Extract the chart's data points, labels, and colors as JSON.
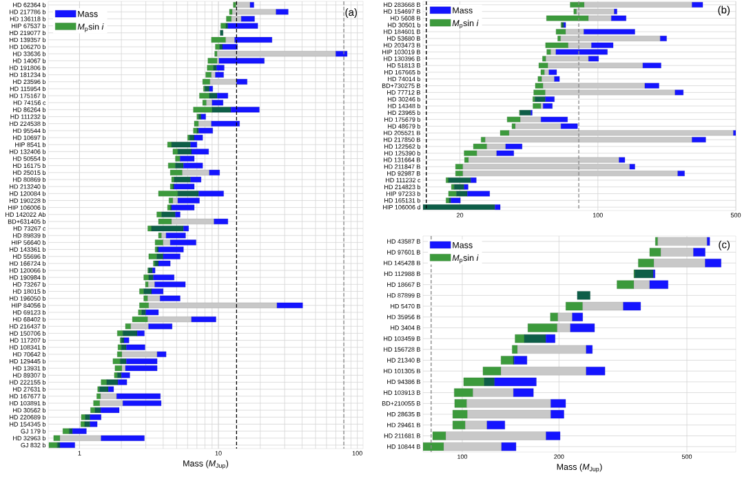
{
  "chart_data": [
    {
      "type": "bar",
      "orientation": "horizontal",
      "log": "x",
      "grid": true,
      "legend": "top left",
      "xlabel": "Mass (*M*$_{Jup}$)",
      "xlim": [
        0.595,
        110
      ],
      "xticks": [
        1,
        10,
        100
      ],
      "categories": [
        "HD 62364 b",
        "HD 217786 b",
        "HD 136118 b",
        "HIP 67537 b",
        "HD 219077 b",
        "HD 139357 b",
        "HD 106270 b",
        "HD 33636 b",
        "HD 14067 b",
        "HD 191806 b",
        "HD 181234 b",
        "HD 23596 b",
        "HD 115954 b",
        "HD 175167 b",
        "HD 74156 c",
        "HD 86264 b",
        "HD 111232 b",
        "HD 224538 b",
        "HD 95544 b",
        "HD 10697 b",
        "HIP 8541 b",
        "HD 132406 b",
        "HD 50554 b",
        "HD 16175 b",
        "HD 25015 b",
        "HD 80869 b",
        "HD 213240 b",
        "HD 120084 b",
        "HD 190228 b",
        "HIP 106006 b",
        "HD 142022 Ab",
        "BD+631405 b",
        "HD 73267 c",
        "HD 89839 b",
        "HIP 56640 b",
        "HD 143361 b",
        "HD 55696 b",
        "HD 166724 b",
        "HD 120066 b",
        "HD 190984 b",
        "HD 73267 b",
        "HD 18015 b",
        "HD 196050 b",
        "HIP 84056 b",
        "HD 69123 b",
        "HD 68402 b",
        "HD 216437 b",
        "HD 150706 b",
        "HD 117207 b",
        "HD 108341 b",
        "HD 70642 b",
        "HD 129445 b",
        "HD 13931 b",
        "HD 89307 b",
        "HD 222155 b",
        "HD 27631 b",
        "HD 167677 b",
        "HD 103891 b",
        "HD 30562 b",
        "HD 220689 b",
        "HD 154345 b",
        "GJ 179 b",
        "HD 32963 b",
        "GJ 832 b"
      ],
      "series": [
        {
          "name": "*M*$_{p}$sin *i*",
          "color": "#3c9a3c",
          "base": [
            12.8,
            12.0,
            11.4,
            10.4,
            null,
            8.9,
            9.5,
            9.4,
            8.4,
            8.3,
            8.1,
            7.7,
            7.8,
            7.3,
            7.7,
            6.6,
            7.0,
            6.7,
            6.6,
            6.0,
            4.3,
            4.7,
            4.9,
            4.35,
            4.5,
            4.6,
            4.5,
            3.7,
            4.4,
            4.3,
            3.6,
            3.7,
            3.1,
            3.7,
            3.5,
            3.5,
            3.15,
            3.4,
            3.1,
            2.9,
            2.98,
            2.7,
            2.9,
            2.7,
            2.65,
            2.4,
            2.14,
            1.87,
            1.96,
            1.89,
            1.87,
            1.74,
            1.8,
            1.78,
            1.43,
            1.35,
            1.33,
            1.26,
            1.2,
            1.03,
            1.02,
            0.758,
            0.651,
            0.602
          ],
          "values": [
            0.6,
            0.6,
            1.0,
            0.9,
            null,
            2.4,
            0.7,
            0.4,
            1.4,
            0.9,
            0.8,
            1.0,
            0.2,
            1.3,
            0.5,
            2.4,
            0.2,
            0.5,
            0.4,
            0.2,
            0.3,
            0.4,
            0.4,
            0.55,
            1.0,
            0.2,
            0.2,
            1.4,
            0.3,
            0.2,
            0.3,
            0.9,
            0.2,
            0.2,
            0.5,
            0.1,
            0.45,
            0.1,
            0.05,
            0.25,
            0.15,
            0.2,
            0.2,
            0.45,
            0.15,
            0.7,
            0.2,
            0.18,
            0.04,
            0.11,
            0.15,
            0.22,
            0.22,
            0.09,
            0.14,
            0.04,
            0.09,
            0.14,
            0.09,
            0.07,
            0.07,
            0.084,
            0.072,
            0.09
          ]
        },
        {
          "color": "#c8c8c8",
          "base": [
            13.4,
            12.6,
            12.4,
            null,
            null,
            11.3,
            null,
            9.8,
            9.8,
            null,
            8.9,
            8.7,
            null,
            null,
            8.2,
            null,
            null,
            7.2,
            null,
            null,
            null,
            null,
            null,
            null,
            5.5,
            null,
            null,
            null,
            4.7,
            null,
            null,
            4.6,
            null,
            3.9,
            4.0,
            null,
            null,
            null,
            null,
            null,
            3.13,
            null,
            3.1,
            3.15,
            null,
            3.1,
            2.34,
            null,
            null,
            null,
            2.02,
            null,
            2.02,
            null,
            null,
            null,
            1.42,
            1.4,
            null,
            null,
            null,
            null,
            0.723,
            null
          ],
          "values": [
            3.5,
            13.4,
            2.2,
            null,
            null,
            1.8,
            null,
            60.2,
            0.3,
            null,
            0.6,
            4.8,
            null,
            null,
            0.8,
            null,
            null,
            1.7,
            null,
            null,
            null,
            null,
            null,
            null,
            3.1,
            null,
            null,
            null,
            0.4,
            null,
            null,
            4.7,
            null,
            0.3,
            0.5,
            null,
            null,
            null,
            null,
            null,
            0.35,
            null,
            0.7,
            23.25,
            null,
            3.3,
            0.8,
            null,
            null,
            null,
            1.6,
            null,
            0.12,
            null,
            null,
            null,
            0.43,
            0.65,
            null,
            null,
            null,
            null,
            0.707,
            null
          ]
        },
        {
          "color": "#0e5e48",
          "base": [
            null,
            null,
            null,
            11.3,
            10.3,
            null,
            10.2,
            null,
            null,
            9.2,
            null,
            null,
            8.0,
            8.6,
            null,
            9.0,
            7.2,
            null,
            7.0,
            6.2,
            4.6,
            5.1,
            null,
            4.9,
            null,
            4.8,
            4.7,
            5.1,
            null,
            4.5,
            3.9,
            null,
            3.3,
            null,
            null,
            3.6,
            3.6,
            3.5,
            3.15,
            3.15,
            null,
            2.9,
            null,
            null,
            2.8,
            null,
            null,
            2.05,
            2.0,
            2.0,
            null,
            1.96,
            null,
            1.87,
            1.57,
            1.39,
            null,
            null,
            1.29,
            1.1,
            1.09,
            0.842,
            null,
            0.692
          ],
          "values": [
            null,
            null,
            null,
            0.4,
            0.5,
            null,
            0.5,
            null,
            null,
            0.5,
            null,
            null,
            0.6,
            1.2,
            null,
            3.3,
            0.3,
            null,
            0.2,
            0.5,
            1.7,
            1.3,
            null,
            0.7,
            null,
            1.5,
            0.1,
            2.1,
            null,
            0.1,
            1.0,
            null,
            2.3,
            null,
            null,
            0.1,
            0.4,
            0.2,
            0.2,
            0.25,
            null,
            0.4,
            null,
            null,
            0.2,
            null,
            null,
            0.55,
            0.09,
            0.17,
            null,
            0.21,
            null,
            0.13,
            0.32,
            0.22,
            null,
            null,
            0.13,
            0.09,
            0.1,
            0.047,
            null,
            0.031
          ]
        },
        {
          "name": "Mass",
          "color": "#1414ff",
          "base": [
            16.9,
            26.0,
            14.6,
            11.7,
            null,
            13.1,
            10.7,
            70,
            10.1,
            9.7,
            9.5,
            13.5,
            8.6,
            9.8,
            9.0,
            12.3,
            7.5,
            8.9,
            7.2,
            6.7,
            6.3,
            6.4,
            5.3,
            5.6,
            8.6,
            6.3,
            4.8,
            7.2,
            5.1,
            4.6,
            4.9,
            9.3,
            5.6,
            4.2,
            4.5,
            3.7,
            4.0,
            3.7,
            3.35,
            3.4,
            3.48,
            3.3,
            3.8,
            26.4,
            3.0,
            6.4,
            3.14,
            2.6,
            2.09,
            2.17,
            3.62,
            2.17,
            2.14,
            2.0,
            1.89,
            1.61,
            1.85,
            2.05,
            1.42,
            1.19,
            1.19,
            0.889,
            1.43,
            0.723
          ],
          "values": [
            1.1,
            5.8,
            3.6,
            7.5,
            null,
            11.2,
            3.0,
            14.5,
            11.3,
            1.3,
            1.4,
            2.6,
            0.5,
            1.9,
            1.8,
            7.4,
            0.6,
            5.3,
            1.9,
            1.0,
            0.7,
            2.1,
            1.4,
            2.1,
            1.6,
            1.2,
            1.9,
            3.7,
            2.2,
            2.1,
            0.4,
            2.4,
            0.5,
            1.6,
            2.4,
            1.9,
            1.3,
            0.8,
            0.15,
            1.4,
            2.3,
            0.7,
            1.5,
            14,
            0.7,
            3.2,
            1.5,
            0.33,
            0.18,
            0.79,
            0.58,
            1.45,
            1.48,
            0.3,
            0.3,
            0.15,
            1.97,
            1.82,
            0.51,
            0.24,
            0.15,
            0.231,
            1.5,
            0.202
          ]
        }
      ],
      "ref_lines": [
        {
          "axis": "x",
          "value": 13.5,
          "color": "#000000",
          "line_style": "dashed"
        },
        {
          "axis": "x",
          "value": 80,
          "color": "#888888",
          "line_style": "dashed"
        }
      ],
      "annotations": [
        "(a)"
      ]
    },
    {
      "type": "bar",
      "orientation": "horizontal",
      "log": "x",
      "grid": true,
      "legend": "top left",
      "xlim": [
        13,
        500
      ],
      "xticks": [
        20,
        100,
        500
      ],
      "categories": [
        "HD 283668 B",
        "HD 154697 B",
        "HD 5608 B",
        "HD 30501 b",
        "HD 184601 B",
        "HD 53680 B",
        "HD 203473 B",
        "HIP 103019 B",
        "HD 130396 B",
        "HD 51813 B",
        "HD 167665 b",
        "HD 74014 b",
        "BD+730275 B",
        "HD 77712 B",
        "HD 30246 b",
        "HD 14348 b",
        "HD 23965 b",
        "HD 175679 b",
        "HD 48679 b",
        "HD 205521 B",
        "HD 217850 B",
        "HD 122562 b",
        "HD 125390 b",
        "HD 131664 B",
        "HD 211847 B",
        "HD 92987 B",
        "HD 111232 c",
        "HD 214823 b",
        "HIP 97233 b",
        "HD 165131 b",
        "HIP 106006 d"
      ],
      "series": [
        {
          "name": "*M*$_{p}$sin *i*",
          "color": "#3c9a3c",
          "base": [
            72.4,
            75.5,
            54.9,
            65.0,
            61.4,
            62.6,
            54.3,
            55.1,
            52.4,
            50.2,
            51.4,
            49.7,
            48.2,
            47.3,
            46.8,
            46.9,
            40.0,
            34.7,
            36.7,
            32.0,
            25.6,
            23.4,
            21.0,
            21.1,
            19.0,
            19.0,
            17.0,
            18.1,
            17.5,
            17.0,
            null
          ],
          "values": [
            12.9,
            2.5,
            34.8,
            0.9,
            7.3,
            2.2,
            16.5,
            2.7,
            2.2,
            5.7,
            2.3,
            2.3,
            4.6,
            6.9,
            1.2,
            4.6,
            0.3,
            5.8,
            1.5,
            3.5,
            1.3,
            4.0,
            3.4,
            1.0,
            1.7,
            1.7,
            0.5,
            0.6,
            1.7,
            0.6,
            null
          ]
        },
        {
          "color": "#c8c8c8",
          "base": [
            85.3,
            78,
            89.7,
            null,
            68.7,
            64.8,
            70.8,
            57.8,
            54.6,
            55.9,
            53.7,
            52,
            52.8,
            54.2,
            null,
            51.5,
            null,
            40.5,
            38.2,
            35.5,
            26.9,
            27.4,
            24.4,
            22.1,
            20.7,
            20.7,
            null,
            null,
            null,
            null,
            null
          ],
          "values": [
            214.7,
            43,
            27.3,
            null,
            16.2,
            142.2,
            22,
            3.5,
            35.1,
            113.1,
            2.8,
            8.2,
            120.2,
            191.8,
            null,
            1.3,
            null,
            11,
            26.8,
            450.5,
            273.1,
            6.7,
            6.3,
            105.9,
            124.3,
            233.3,
            null,
            null,
            null,
            null,
            null
          ]
        },
        {
          "color": "#0e5e48",
          "base": [
            null,
            null,
            null,
            65.9,
            null,
            null,
            null,
            null,
            null,
            null,
            null,
            null,
            null,
            null,
            48,
            null,
            40.3,
            null,
            null,
            null,
            null,
            null,
            null,
            null,
            null,
            null,
            17.5,
            18.7,
            19.2,
            17.6,
            13
          ],
          "values": [
            null,
            null,
            null,
            1.4,
            null,
            null,
            null,
            null,
            null,
            null,
            null,
            null,
            null,
            null,
            6.2,
            null,
            5.4,
            null,
            null,
            null,
            null,
            null,
            null,
            null,
            null,
            null,
            5.2,
            2.3,
            2.6,
            0.4,
            17.1
          ]
        },
        {
          "name": "Mass",
          "color": "#1414ff",
          "base": [
            300,
            121,
            117,
            67.3,
            84.9,
            207,
            92.8,
            61.3,
            89.7,
            169,
            56.5,
            60.2,
            173,
            246,
            54.2,
            52.8,
            45.7,
            51.5,
            65,
            486,
            300,
            34.1,
            30.7,
            128,
            145,
            254,
            22.7,
            21,
            21.8,
            18,
            30.1
          ],
          "values": [
            40,
            4,
            22,
            1.4,
            69.1,
            16,
            26.7,
            50.5,
            11.1,
            40,
            5.3,
            3.7,
            31,
            25,
            6.0,
            6.0,
            0.8,
            18.7,
            13.9,
            14,
            52,
            7.2,
            6.8,
            9,
            9,
            21,
            1.5,
            1.0,
            6.5,
            2.1,
            1.9
          ]
        }
      ],
      "ref_lines": [
        {
          "axis": "x",
          "value": 13.5,
          "color": "#000000",
          "line_style": "dashed"
        },
        {
          "axis": "x",
          "value": 80,
          "color": "#888888",
          "line_style": "dashed"
        }
      ],
      "annotations": [
        "(b)"
      ]
    },
    {
      "type": "bar",
      "orientation": "horizontal",
      "log": "x",
      "grid": true,
      "legend": "top left",
      "xlabel": "Mass (*M*$_{Jup}$)",
      "xlim": [
        75.5,
        710
      ],
      "xticks": [
        100,
        200,
        500
      ],
      "categories": [
        "HD 43587 B",
        "HD 97601 B",
        "HD 145428 B",
        "HD 112988 B",
        "HD 18667 B",
        "HD 87899 B",
        "HD 5470 B",
        "HD 35956 B",
        "HD 3404 B",
        "HD 103459 B",
        "HD 156728 B",
        "HD 21340 B",
        "HD 101305 B",
        "HD 94386 B",
        "HD 103913 B",
        "BD+210055 B",
        "HD 28635 B",
        "HD 29461 B",
        "HD 211681 B",
        "HD 10844 B"
      ],
      "series": [
        {
          "name": "*M*$_{p}$sin *i*",
          "color": "#3c9a3c",
          "base": [
            399,
            383,
            353,
            342,
            303,
            null,
            210,
            188,
            160,
            146,
            143,
            132,
            116,
            101,
            94.4,
            94.7,
            93.4,
            93.4,
            80.9,
            75.5
          ],
          "values": [
            7,
            32,
            42,
            2,
            39,
            null,
            27,
            10.5,
            37.5,
            10,
            5.5,
            12,
            16,
            16,
            13.6,
            8.6,
            10.4,
            8.8,
            8,
            12.1
          ]
        },
        {
          "color": "#c8c8c8",
          "base": [
            406,
            415,
            395,
            null,
            342,
            null,
            237,
            198.5,
            197.5,
            null,
            148.5,
            null,
            132,
            null,
            108,
            103.3,
            103.8,
            102.2,
            88.9,
            87.6
          ],
          "values": [
            172,
            109,
            175,
            null,
            41,
            null,
            80,
            21.5,
            19.5,
            null,
            94.5,
            null,
            111,
            null,
            36.3,
            85.3,
            84.8,
            17.2,
            93.4,
            44.9
          ]
        },
        {
          "color": "#0e5e48",
          "base": [
            null,
            null,
            null,
            344,
            null,
            228,
            null,
            null,
            null,
            156,
            null,
            144,
            null,
            117,
            null,
            null,
            null,
            null,
            null,
            null
          ],
          "values": [
            null,
            null,
            null,
            49,
            null,
            22,
            null,
            null,
            null,
            26,
            null,
            1,
            null,
            9,
            null,
            null,
            null,
            null,
            null,
            null
          ]
        },
        {
          "name": "Mass",
          "color": "#1414ff",
          "base": [
            578,
            524,
            570,
            393,
            383,
            null,
            317,
            220,
            217,
            182,
            243,
            145,
            243,
            126,
            144.3,
            188.6,
            188.6,
            119.4,
            182.3,
            132.5
          ],
          "values": [
            11,
            46,
            69,
            5,
            54,
            null,
            42,
            17,
            41,
            12.5,
            11,
            14,
            35,
            44,
            22.2,
            21.1,
            18.6,
            16.3,
            19.3,
            14.5
          ]
        }
      ],
      "ref_lines": [
        {
          "axis": "x",
          "value": 80,
          "color": "#888888",
          "line_style": "dashed"
        }
      ],
      "annotations": [
        "(c)"
      ]
    }
  ]
}
